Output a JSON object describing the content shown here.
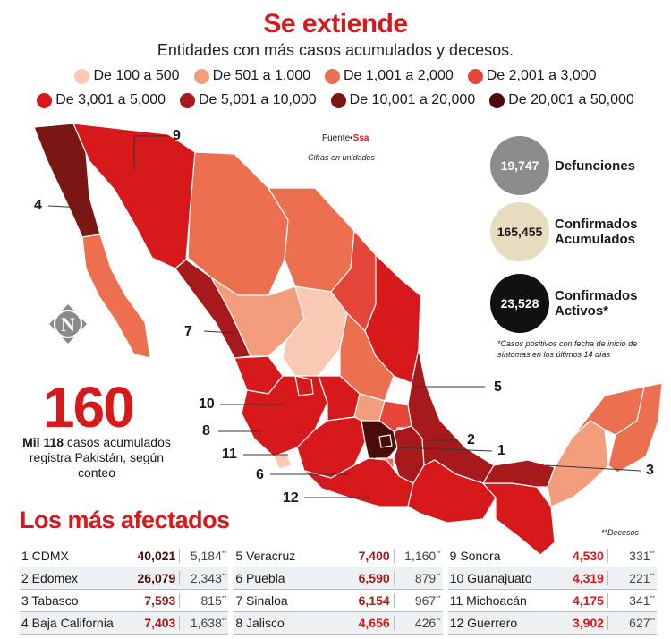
{
  "header": {
    "title": "Se extiende",
    "subtitle": "Entidades con más casos acumulados y decesos."
  },
  "legend": [
    {
      "label": "De 100 a 500",
      "color": "#f9c9b4"
    },
    {
      "label": "De 501 a 1,000",
      "color": "#f39d7d"
    },
    {
      "label": "De 1,001 a 2,000",
      "color": "#ec6f4f"
    },
    {
      "label": "De 2,001 a 3,000",
      "color": "#e4473a"
    },
    {
      "label": "De 3,001 a 5,000",
      "color": "#d7191c"
    },
    {
      "label": "De 5,001 a 10,000",
      "color": "#a8191b"
    },
    {
      "label": "De 10,001 a 20,000",
      "color": "#7a1715"
    },
    {
      "label": "De 20,001 a 50,000",
      "color": "#4a0c09"
    }
  ],
  "source": {
    "prefix": "Fuente",
    "name": "Ssa",
    "note": "Cifras en unidades"
  },
  "stats": [
    {
      "value": "19,747",
      "label": "Defunciones",
      "bg": "#8c8c8c",
      "fg": "#ffffff"
    },
    {
      "value": "165,455",
      "label": "Confirmados Acumulados",
      "bg": "#e7dcbf",
      "fg": "#1a1a1a"
    },
    {
      "value": "23,528",
      "label": "Confirmados Activos*",
      "bg": "#111111",
      "fg": "#ffffff"
    }
  ],
  "footnote": "*Casos positivos con fecha de inicio de síntomas en los últimos 14 días",
  "highlight": {
    "number": "160",
    "bold": "Mil 118",
    "text": "casos acumulados registra Pakistán, según conteo"
  },
  "map_labels": [
    "1",
    "2",
    "3",
    "4",
    "5",
    "6",
    "7",
    "8",
    "9",
    "10",
    "11",
    "12"
  ],
  "most_affected": {
    "title": "Los más afectados",
    "deaths_note": "**Decesos",
    "rows": [
      {
        "rank": "1",
        "state": "CDMX",
        "cases": "40,021",
        "deaths": "5,184",
        "color": "#4a0c09"
      },
      {
        "rank": "2",
        "state": "Edomex",
        "cases": "26,079",
        "deaths": "2,343",
        "color": "#4a0c09"
      },
      {
        "rank": "3",
        "state": "Tabasco",
        "cases": "7,593",
        "deaths": "815",
        "color": "#a8191b"
      },
      {
        "rank": "4",
        "state": "Baja California",
        "cases": "7,403",
        "deaths": "1,638",
        "color": "#a8191b"
      },
      {
        "rank": "5",
        "state": "Veracruz",
        "cases": "7,400",
        "deaths": "1,160",
        "color": "#a8191b"
      },
      {
        "rank": "6",
        "state": "Puebla",
        "cases": "6,590",
        "deaths": "879",
        "color": "#a8191b"
      },
      {
        "rank": "7",
        "state": "Sinaloa",
        "cases": "6,154",
        "deaths": "967",
        "color": "#a8191b"
      },
      {
        "rank": "8",
        "state": "Jalisco",
        "cases": "4,656",
        "deaths": "426",
        "color": "#d7191c"
      },
      {
        "rank": "9",
        "state": "Sonora",
        "cases": "4,530",
        "deaths": "331",
        "color": "#d7191c"
      },
      {
        "rank": "10",
        "state": "Guanajuato",
        "cases": "4,319",
        "deaths": "221",
        "color": "#d7191c"
      },
      {
        "rank": "11",
        "state": "Michoacán",
        "cases": "4,175",
        "deaths": "341",
        "color": "#d7191c"
      },
      {
        "rank": "12",
        "state": "Guerrero",
        "cases": "3,902",
        "deaths": "627",
        "color": "#d7191c"
      }
    ],
    "deaths_mark": "**"
  }
}
